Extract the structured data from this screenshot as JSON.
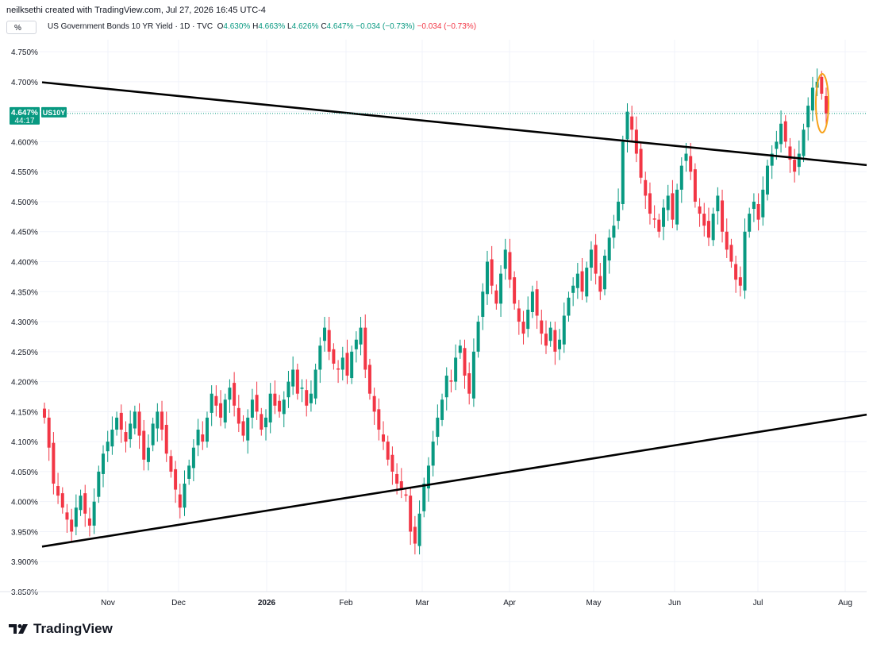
{
  "header": {
    "created_by": "neilksethi created with TradingView.com, Jul 27, 2026 16:45 UTC-4",
    "scale_button": "%"
  },
  "legend": {
    "title": "US Government Bonds 10 YR Yield · 1D · TVC",
    "o_label": "O",
    "o_value": "4.630%",
    "h_label": "H",
    "h_value": "4.663%",
    "l_label": "L",
    "l_value": "4.626%",
    "c_label": "C",
    "c_value": "4.647%",
    "change": "−0.034 (−0.73%)",
    "change2": "−0.034 (−0.73%)"
  },
  "price_tag": {
    "value": "4.647%",
    "countdown": "44:17",
    "symbol": "US10Y"
  },
  "footer": {
    "brand": "TradingView"
  },
  "colors": {
    "up": "#089981",
    "down": "#f23645",
    "trendline": "#000000",
    "highlight": "#f7a21b"
  },
  "chart_data": {
    "type": "candlestick",
    "y_unit": "%",
    "ylim": [
      3.85,
      4.77
    ],
    "y_ticks": [
      "4.750%",
      "4.700%",
      "4.650%",
      "4.600%",
      "4.550%",
      "4.500%",
      "4.450%",
      "4.400%",
      "4.350%",
      "4.300%",
      "4.250%",
      "4.200%",
      "4.150%",
      "4.100%",
      "4.050%",
      "4.000%",
      "3.950%",
      "3.900%",
      "3.850%"
    ],
    "x_ticks": [
      "Nov",
      "Dec",
      "2026",
      "Feb",
      "Mar",
      "Apr",
      "May",
      "Jun",
      "Jul",
      "Aug"
    ],
    "grid": true,
    "last_close": 4.647,
    "closes": [
      4.14,
      4.09,
      4.03,
      4.01,
      3.99,
      3.97,
      3.95,
      3.99,
      4.01,
      3.98,
      3.96,
      4.0,
      4.05,
      4.08,
      4.1,
      4.12,
      4.14,
      4.12,
      4.1,
      4.13,
      4.15,
      4.11,
      4.07,
      4.09,
      4.13,
      4.15,
      4.12,
      4.08,
      4.05,
      4.02,
      3.99,
      4.03,
      4.06,
      4.09,
      4.12,
      4.1,
      4.14,
      4.18,
      4.16,
      4.14,
      4.17,
      4.19,
      4.16,
      4.13,
      4.11,
      4.14,
      4.17,
      4.15,
      4.12,
      4.14,
      4.18,
      4.16,
      4.15,
      4.17,
      4.2,
      4.22,
      4.18,
      4.19,
      4.16,
      4.18,
      4.22,
      4.26,
      4.29,
      4.25,
      4.23,
      4.22,
      4.24,
      4.21,
      4.25,
      4.27,
      4.29,
      4.22,
      4.18,
      4.15,
      4.12,
      4.1,
      4.07,
      4.05,
      4.03,
      4.02,
      4.01,
      3.95,
      3.93,
      3.98,
      4.03,
      4.06,
      4.1,
      4.14,
      4.17,
      4.21,
      4.2,
      4.24,
      4.26,
      4.21,
      4.18,
      4.25,
      4.3,
      4.35,
      4.4,
      4.36,
      4.33,
      4.38,
      4.42,
      4.37,
      4.33,
      4.3,
      4.28,
      4.32,
      4.35,
      4.31,
      4.28,
      4.26,
      4.29,
      4.25,
      4.27,
      4.31,
      4.34,
      4.36,
      4.38,
      4.35,
      4.39,
      4.42,
      4.38,
      4.35,
      4.41,
      4.44,
      4.46,
      4.5,
      4.6,
      4.65,
      4.62,
      4.58,
      4.54,
      4.51,
      4.48,
      4.47,
      4.45,
      4.49,
      4.51,
      4.47,
      4.52,
      4.56,
      4.58,
      4.55,
      4.5,
      4.48,
      4.46,
      4.44,
      4.48,
      4.51,
      4.45,
      4.42,
      4.4,
      4.37,
      4.36,
      4.45,
      4.48,
      4.5,
      4.47,
      4.52,
      4.56,
      4.58,
      4.6,
      4.63,
      4.6,
      4.57,
      4.55,
      4.58,
      4.62,
      4.66,
      4.69,
      4.7,
      4.68,
      4.647
    ]
  }
}
